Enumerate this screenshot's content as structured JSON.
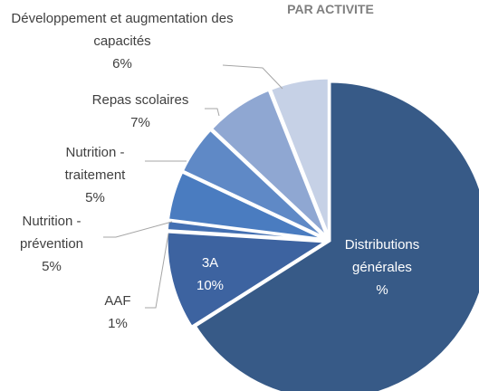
{
  "chart_data": {
    "type": "pie",
    "title": "PAR ACTIVITE",
    "categories": [
      "Distributions générales",
      "3A",
      "AAF",
      "Nutrition - prévention",
      "Nutrition - traitement",
      "Repas scolaires",
      "Développement et augmentation des capacités"
    ],
    "values": [
      66,
      10,
      1,
      5,
      5,
      7,
      6
    ],
    "value_labels": [
      "%",
      "10%",
      "1%",
      "5%",
      "5%",
      "7%",
      "6%"
    ],
    "colors": [
      "#375a87",
      "#3d63a0",
      "#4470b2",
      "#4a7cc0",
      "#5f89c6",
      "#8fa7d2",
      "#c6d1e6"
    ]
  }
}
